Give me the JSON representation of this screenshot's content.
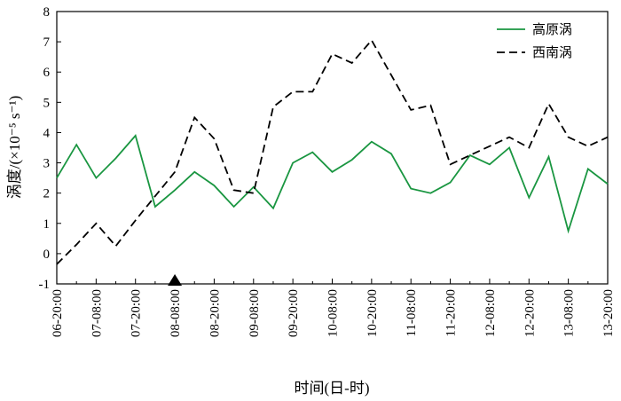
{
  "chart_data": {
    "type": "line",
    "xlabel": "时间(日-时)",
    "ylabel": "涡度/(×10⁻⁵ s⁻¹)",
    "ylim": [
      -1,
      8
    ],
    "yticks": [
      -1,
      0,
      1,
      2,
      3,
      4,
      5,
      6,
      7,
      8
    ],
    "x_tick_labels": [
      "06-20:00",
      "07-08:00",
      "07-20:00",
      "08-08:00",
      "08-20:00",
      "09-08:00",
      "09-20:00",
      "10-08:00",
      "10-20:00",
      "11-08:00",
      "11-20:00",
      "12-08:00",
      "12-20:00",
      "13-08:00",
      "13-20:00"
    ],
    "x_points": [
      "06-20:00",
      "07-02:00",
      "07-08:00",
      "07-14:00",
      "07-20:00",
      "08-02:00",
      "08-08:00",
      "08-14:00",
      "08-20:00",
      "09-02:00",
      "09-08:00",
      "09-14:00",
      "09-20:00",
      "10-02:00",
      "10-08:00",
      "10-14:00",
      "10-20:00",
      "11-02:00",
      "11-08:00",
      "11-14:00",
      "11-20:00",
      "12-02:00",
      "12-08:00",
      "12-14:00",
      "12-20:00",
      "13-02:00",
      "13-08:00",
      "13-14:00",
      "13-20:00"
    ],
    "series": [
      {
        "name": "高原涡",
        "color": "#1a9641",
        "dash": "solid",
        "values": [
          2.5,
          3.6,
          2.5,
          3.15,
          3.9,
          1.55,
          2.1,
          2.7,
          2.25,
          1.55,
          2.2,
          1.5,
          3.0,
          3.35,
          2.7,
          3.1,
          3.7,
          3.3,
          2.15,
          2.0,
          2.35,
          3.25,
          2.95,
          3.5,
          1.85,
          3.2,
          0.75,
          2.8,
          2.3
        ]
      },
      {
        "name": "西南涡",
        "color": "#000000",
        "dash": "dashed",
        "values": [
          -0.35,
          0.3,
          1.0,
          0.25,
          1.1,
          1.9,
          2.7,
          4.5,
          3.8,
          2.1,
          2.0,
          4.85,
          5.35,
          5.35,
          6.6,
          6.3,
          7.05,
          5.9,
          4.75,
          4.9,
          2.95,
          3.25,
          3.55,
          3.85,
          3.5,
          4.95,
          3.85,
          3.55,
          3.85
        ]
      }
    ],
    "marker": {
      "shape": "triangle-up",
      "at": "08-08:00",
      "color": "#000000"
    },
    "legend_position": "top-right",
    "grid": false
  }
}
